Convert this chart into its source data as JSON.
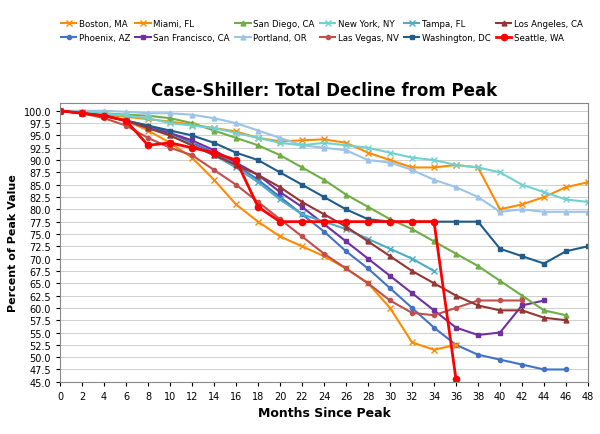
{
  "title": "Case-Shiller: Total Decline from Peak",
  "xlabel": "Months Since Peak",
  "ylabel": "Percent of Peak Value",
  "xlim": [
    0,
    48
  ],
  "ylim": [
    45.0,
    101.5
  ],
  "yticks": [
    45.0,
    47.5,
    50.0,
    52.5,
    55.0,
    57.5,
    60.0,
    62.5,
    65.0,
    67.5,
    70.0,
    72.5,
    75.0,
    77.5,
    80.0,
    82.5,
    85.0,
    87.5,
    90.0,
    92.5,
    95.0,
    97.5,
    100.0
  ],
  "xticks": [
    0,
    2,
    4,
    6,
    8,
    10,
    12,
    14,
    16,
    18,
    20,
    22,
    24,
    26,
    28,
    30,
    32,
    34,
    36,
    38,
    40,
    42,
    44,
    46,
    48
  ],
  "series": {
    "Boston, MA": {
      "color": "#FF8C00",
      "marker": "x",
      "markersize": 4,
      "linewidth": 1.5,
      "x": [
        0,
        2,
        4,
        6,
        8,
        10,
        12,
        14,
        16,
        18,
        20,
        22,
        24,
        26,
        28,
        30,
        32,
        34,
        36,
        38,
        40,
        42,
        44,
        46,
        48
      ],
      "y": [
        100,
        99.5,
        99.2,
        98.8,
        98.3,
        97.8,
        97.2,
        96.5,
        95.8,
        94.5,
        93.8,
        94.0,
        94.2,
        93.5,
        91.5,
        90.0,
        88.5,
        88.5,
        89.0,
        88.5,
        80.0,
        81.0,
        82.5,
        84.5,
        85.5
      ]
    },
    "Phoenix, AZ": {
      "color": "#4472C4",
      "marker": "o",
      "markersize": 3,
      "linewidth": 1.5,
      "x": [
        0,
        2,
        4,
        6,
        8,
        10,
        12,
        14,
        16,
        18,
        20,
        22,
        24,
        26,
        28,
        30,
        32,
        34,
        36,
        38,
        40,
        42,
        44,
        46
      ],
      "y": [
        100,
        99.5,
        99.0,
        98.0,
        97.0,
        95.5,
        93.5,
        91.5,
        89.0,
        86.0,
        82.5,
        79.0,
        75.5,
        71.5,
        68.0,
        64.0,
        60.0,
        56.0,
        52.5,
        50.5,
        49.5,
        48.5,
        47.5,
        47.5
      ]
    },
    "Miami, FL": {
      "color": "#FF8C00",
      "marker": "x",
      "markersize": 4,
      "linewidth": 1.5,
      "x": [
        0,
        2,
        4,
        6,
        8,
        10,
        12,
        14,
        16,
        18,
        20,
        22,
        24,
        26,
        28,
        30,
        32,
        34,
        36
      ],
      "y": [
        100,
        99.5,
        99.0,
        98.0,
        96.0,
        93.5,
        90.5,
        86.0,
        81.0,
        77.5,
        74.5,
        72.5,
        70.5,
        68.0,
        65.0,
        60.0,
        53.0,
        51.5,
        52.5
      ]
    },
    "San Francisco, CA": {
      "color": "#7030A0",
      "marker": "s",
      "markersize": 3.5,
      "linewidth": 1.5,
      "x": [
        0,
        2,
        4,
        6,
        8,
        10,
        12,
        14,
        16,
        18,
        20,
        22,
        24,
        26,
        28,
        30,
        32,
        34,
        36,
        38,
        40,
        42,
        44
      ],
      "y": [
        100,
        99.5,
        99.0,
        98.0,
        96.5,
        95.5,
        94.0,
        92.0,
        89.5,
        87.0,
        83.5,
        80.5,
        77.0,
        73.5,
        70.0,
        66.5,
        63.0,
        59.5,
        56.0,
        54.5,
        55.0,
        60.5,
        61.5
      ]
    },
    "San Diego, CA": {
      "color": "#70AD47",
      "marker": "^",
      "markersize": 3.5,
      "linewidth": 1.5,
      "x": [
        0,
        2,
        4,
        6,
        8,
        10,
        12,
        14,
        16,
        18,
        20,
        22,
        24,
        26,
        28,
        30,
        32,
        34,
        36,
        38,
        40,
        42,
        44,
        46
      ],
      "y": [
        100,
        99.8,
        99.5,
        99.2,
        99.0,
        98.5,
        97.5,
        96.0,
        94.5,
        93.0,
        91.0,
        88.5,
        86.0,
        83.0,
        80.5,
        78.0,
        76.0,
        73.5,
        71.0,
        68.5,
        65.5,
        62.5,
        59.5,
        58.5
      ]
    },
    "Portland, OR": {
      "color": "#9DC3E6",
      "marker": "^",
      "markersize": 3.5,
      "linewidth": 1.5,
      "x": [
        0,
        2,
        4,
        6,
        8,
        10,
        12,
        14,
        16,
        18,
        20,
        22,
        24,
        26,
        28,
        30,
        32,
        34,
        36,
        38,
        40,
        42,
        44,
        46,
        48
      ],
      "y": [
        100,
        100,
        100,
        99.8,
        99.5,
        99.5,
        99.2,
        98.5,
        97.5,
        96.0,
        94.5,
        93.0,
        92.5,
        92.0,
        90.0,
        89.5,
        88.0,
        86.0,
        84.5,
        82.5,
        79.5,
        80.0,
        79.5,
        79.5,
        79.5
      ]
    },
    "New York, NY": {
      "color": "#70D1D1",
      "marker": "x",
      "markersize": 4,
      "linewidth": 1.5,
      "x": [
        0,
        2,
        4,
        6,
        8,
        10,
        12,
        14,
        16,
        18,
        20,
        22,
        24,
        26,
        28,
        30,
        32,
        34,
        36,
        38,
        40,
        42,
        44,
        46,
        48
      ],
      "y": [
        100,
        99.8,
        99.5,
        99.0,
        98.5,
        97.5,
        97.0,
        96.5,
        95.5,
        94.5,
        93.5,
        93.0,
        93.5,
        93.0,
        92.5,
        91.5,
        90.5,
        90.0,
        89.0,
        88.5,
        87.5,
        85.0,
        83.5,
        82.0,
        81.5
      ]
    },
    "Las Vegas, NV": {
      "color": "#C0504D",
      "marker": "o",
      "markersize": 3,
      "linewidth": 1.5,
      "x": [
        0,
        2,
        4,
        6,
        8,
        10,
        12,
        14,
        16,
        18,
        20,
        22,
        24,
        26,
        28,
        30,
        32,
        34,
        36,
        38,
        40,
        42
      ],
      "y": [
        100,
        99.5,
        98.5,
        97.0,
        94.5,
        92.5,
        91.0,
        88.0,
        85.0,
        81.5,
        78.0,
        74.5,
        71.0,
        68.0,
        65.0,
        61.5,
        59.0,
        58.5,
        60.0,
        61.5,
        61.5,
        61.5
      ]
    },
    "Tampa, FL": {
      "color": "#4BACC6",
      "marker": "x",
      "markersize": 4,
      "linewidth": 1.5,
      "x": [
        0,
        2,
        4,
        6,
        8,
        10,
        12,
        14,
        16,
        18,
        20,
        22,
        24,
        26,
        28,
        30,
        32,
        34
      ],
      "y": [
        100,
        99.5,
        99.0,
        98.0,
        96.5,
        95.0,
        93.0,
        91.0,
        88.5,
        85.5,
        82.0,
        79.0,
        77.5,
        76.0,
        74.0,
        72.0,
        70.0,
        67.5
      ]
    },
    "Washington, DC": {
      "color": "#1F5C8B",
      "marker": "s",
      "markersize": 3.5,
      "linewidth": 1.5,
      "x": [
        0,
        2,
        4,
        6,
        8,
        10,
        12,
        14,
        16,
        18,
        20,
        22,
        24,
        26,
        28,
        30,
        32,
        34,
        36,
        38,
        40,
        42,
        44,
        46,
        48
      ],
      "y": [
        100,
        99.5,
        99.0,
        98.0,
        97.0,
        96.0,
        95.0,
        93.5,
        91.5,
        90.0,
        87.5,
        85.0,
        82.5,
        80.0,
        78.0,
        77.5,
        77.5,
        77.5,
        77.5,
        77.5,
        72.0,
        70.5,
        69.0,
        71.5,
        72.5
      ]
    },
    "Los Angeles, CA": {
      "color": "#943634",
      "marker": "^",
      "markersize": 3.5,
      "linewidth": 1.5,
      "x": [
        0,
        2,
        4,
        6,
        8,
        10,
        12,
        14,
        16,
        18,
        20,
        22,
        24,
        26,
        28,
        30,
        32,
        34,
        36,
        38,
        40,
        42,
        44,
        46
      ],
      "y": [
        100,
        99.5,
        99.0,
        98.0,
        96.5,
        95.0,
        93.0,
        91.0,
        89.0,
        87.0,
        84.5,
        81.5,
        79.0,
        76.5,
        73.5,
        70.5,
        67.5,
        65.0,
        62.5,
        60.5,
        59.5,
        59.5,
        58.0,
        57.5
      ]
    },
    "Seattle, WA": {
      "color": "#FF0000",
      "marker": "o",
      "markersize": 4.5,
      "linewidth": 2.0,
      "x": [
        0,
        2,
        4,
        6,
        8,
        10,
        12,
        14,
        16,
        18,
        20,
        22,
        24,
        26,
        28,
        30,
        32,
        34,
        36
      ],
      "y": [
        100,
        99.5,
        99.0,
        98.0,
        93.0,
        93.5,
        92.5,
        91.5,
        90.0,
        80.5,
        77.5,
        77.5,
        77.5,
        77.5,
        77.5,
        77.5,
        77.5,
        77.5,
        45.5
      ]
    }
  },
  "legend_order": [
    "Boston, MA",
    "Phoenix, AZ",
    "Miami, FL",
    "San Francisco, CA",
    "San Diego, CA",
    "Portland, OR",
    "New York, NY",
    "Las Vegas, NV",
    "Tampa, FL",
    "Washington, DC",
    "Los Angeles, CA",
    "Seattle, WA"
  ],
  "background_color": "#FFFFFF",
  "grid_color": "#C8C8C8"
}
